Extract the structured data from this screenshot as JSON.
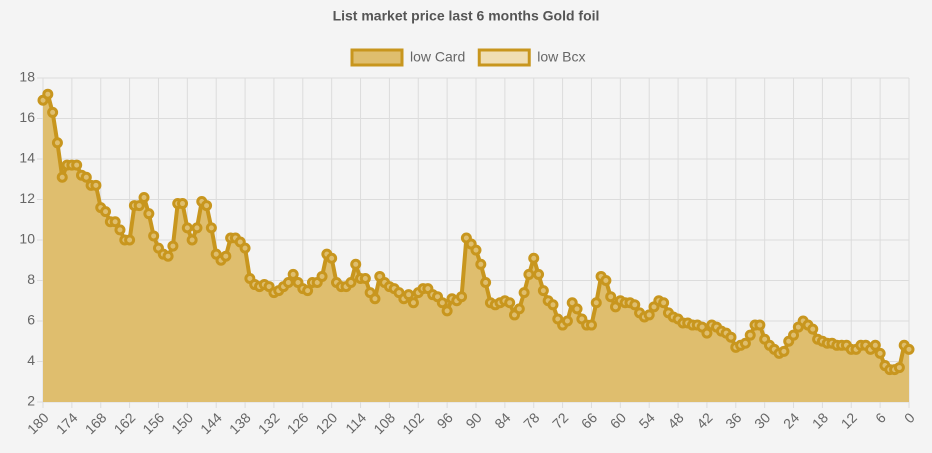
{
  "chart_data": {
    "type": "line",
    "title": "List market price last 6 months Gold foil",
    "x": [
      180,
      179,
      178,
      177,
      176,
      175,
      174,
      173,
      172,
      171,
      170,
      169,
      168,
      167,
      166,
      165,
      164,
      163,
      162,
      161,
      160,
      159,
      158,
      157,
      156,
      155,
      154,
      153,
      152,
      151,
      150,
      149,
      148,
      147,
      146,
      145,
      144,
      143,
      142,
      141,
      140,
      139,
      138,
      137,
      136,
      135,
      134,
      133,
      132,
      131,
      130,
      129,
      128,
      127,
      126,
      125,
      124,
      123,
      122,
      121,
      120,
      119,
      118,
      117,
      116,
      115,
      114,
      113,
      112,
      111,
      110,
      109,
      108,
      107,
      106,
      105,
      104,
      103,
      102,
      101,
      100,
      99,
      98,
      97,
      96,
      95,
      94,
      93,
      92,
      91,
      90,
      89,
      88,
      87,
      86,
      85,
      84,
      83,
      82,
      81,
      80,
      79,
      78,
      77,
      76,
      75,
      74,
      73,
      72,
      71,
      70,
      69,
      68,
      67,
      66,
      65,
      64,
      63,
      62,
      61,
      60,
      59,
      58,
      57,
      56,
      55,
      54,
      53,
      52,
      51,
      50,
      49,
      48,
      47,
      46,
      45,
      44,
      43,
      42,
      41,
      40,
      39,
      38,
      37,
      36,
      35,
      34,
      33,
      32,
      31,
      30,
      29,
      28,
      27,
      26,
      25,
      24,
      23,
      22,
      21,
      20,
      19,
      18,
      17,
      16,
      15,
      14,
      13,
      12,
      11,
      10,
      9,
      8,
      7,
      6,
      5,
      4,
      3,
      2,
      1,
      0
    ],
    "series": [
      {
        "name": "low Card",
        "color": "#c8961e",
        "fill": "#dfbe6e",
        "values": [
          16.9,
          17.2,
          16.3,
          14.8,
          13.1,
          13.7,
          13.7,
          13.7,
          13.2,
          13.1,
          12.7,
          12.7,
          11.6,
          11.4,
          10.9,
          10.9,
          10.5,
          10.0,
          10.0,
          11.7,
          11.7,
          12.1,
          11.3,
          10.2,
          9.6,
          9.3,
          9.2,
          9.7,
          11.8,
          11.8,
          10.6,
          10.0,
          10.6,
          11.9,
          11.7,
          10.6,
          9.3,
          9.0,
          9.2,
          10.1,
          10.1,
          9.9,
          9.6,
          8.1,
          7.8,
          7.7,
          7.8,
          7.7,
          7.4,
          7.5,
          7.7,
          7.9,
          8.3,
          7.9,
          7.6,
          7.5,
          7.9,
          7.9,
          8.2,
          9.3,
          9.1,
          7.9,
          7.7,
          7.7,
          7.9,
          8.8,
          8.1,
          8.1,
          7.4,
          7.1,
          8.2,
          7.9,
          7.7,
          7.6,
          7.4,
          7.1,
          7.3,
          6.9,
          7.4,
          7.6,
          7.6,
          7.3,
          7.2,
          6.9,
          6.5,
          7.1,
          7.0,
          7.2,
          10.1,
          9.8,
          9.5,
          8.8,
          7.9,
          6.9,
          6.8,
          6.9,
          7.0,
          6.9,
          6.3,
          6.6,
          7.4,
          8.3,
          9.1,
          8.3,
          7.5,
          7.0,
          6.8,
          6.1,
          5.8,
          6.0,
          6.9,
          6.6,
          6.1,
          5.8,
          5.8,
          6.9,
          8.2,
          8.0,
          7.2,
          6.7,
          7.0,
          6.9,
          6.9,
          6.8,
          6.4,
          6.2,
          6.3,
          6.7,
          7.0,
          6.9,
          6.4,
          6.2,
          6.1,
          5.9,
          5.9,
          5.8,
          5.8,
          5.7,
          5.4,
          5.8,
          5.7,
          5.5,
          5.4,
          5.2,
          4.7,
          4.8,
          4.9,
          5.3,
          5.8,
          5.8,
          5.1,
          4.8,
          4.6,
          4.4,
          4.5,
          5.0,
          5.3,
          5.7,
          6.0,
          5.8,
          5.6,
          5.1,
          5.0,
          4.9,
          4.9,
          4.8,
          4.8,
          4.8,
          4.6,
          4.6,
          4.8,
          4.8,
          4.6,
          4.8,
          4.4,
          3.8,
          3.6,
          3.6,
          3.7,
          4.8,
          4.6
        ]
      },
      {
        "name": "low Bcx",
        "color": "#c8961e",
        "fill": "#f0deb4",
        "values": [
          null,
          null,
          null,
          null,
          null,
          null,
          null,
          null,
          null,
          null,
          null,
          null,
          null,
          null,
          null,
          null,
          null,
          null,
          null,
          null,
          null,
          null,
          null,
          null,
          null,
          null,
          null,
          null,
          null,
          null,
          null,
          null,
          null,
          null,
          null,
          null,
          null,
          null,
          null,
          null,
          null,
          null,
          null,
          null,
          null,
          null,
          null,
          null,
          null,
          null,
          null,
          null,
          null,
          null,
          null,
          null,
          null,
          null,
          null,
          null,
          null,
          null,
          null,
          null,
          null,
          null,
          null,
          null,
          null,
          null,
          null,
          null,
          null,
          null,
          null,
          null,
          null,
          null,
          null,
          null,
          null,
          null,
          null,
          null,
          null,
          null,
          null,
          null,
          null,
          null,
          null,
          null,
          null,
          null,
          null,
          null,
          null,
          null,
          null,
          null,
          null,
          null,
          null,
          null,
          null,
          null,
          null,
          null,
          null,
          null,
          null,
          null,
          null,
          null,
          null,
          null,
          null,
          null,
          null,
          null,
          null,
          null,
          null,
          null,
          null,
          null,
          null,
          null,
          null,
          null,
          null,
          null,
          null,
          null,
          null,
          null,
          null,
          null,
          null,
          null,
          null,
          null,
          null,
          null,
          null,
          null,
          null,
          null,
          null,
          null,
          null,
          null,
          null,
          null,
          null,
          null,
          null,
          null,
          null,
          null,
          null,
          null,
          null,
          null,
          null,
          null,
          null,
          null,
          null,
          null,
          null,
          null,
          null,
          null,
          null,
          null,
          null,
          null,
          null,
          null,
          null
        ]
      }
    ],
    "xlim": [
      180,
      0
    ],
    "xticks": [
      180,
      174,
      168,
      162,
      156,
      150,
      144,
      138,
      132,
      126,
      120,
      114,
      108,
      102,
      96,
      90,
      84,
      78,
      72,
      66,
      60,
      54,
      48,
      42,
      36,
      30,
      24,
      18,
      12,
      6,
      0
    ],
    "ylim": [
      2,
      18
    ],
    "yticks": [
      2,
      4,
      6,
      8,
      10,
      12,
      14,
      16,
      18
    ],
    "grid": true
  }
}
